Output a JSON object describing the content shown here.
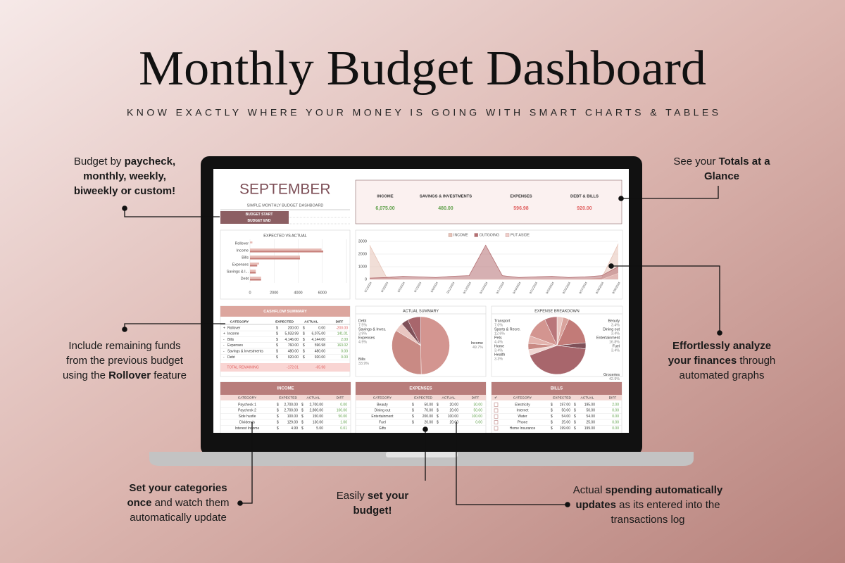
{
  "header": {
    "title": "Monthly Budget Dashboard",
    "subtitle": "KNOW EXACTLY WHERE YOUR MONEY IS GOING WITH SMART CHARTS & TABLES"
  },
  "callouts": [
    {
      "lines": [
        [
          {
            "text": "Budget by "
          },
          {
            "text": "paycheck,",
            "bold": true
          }
        ],
        [
          {
            "text": "monthly, weekly,",
            "bold": true
          }
        ],
        [
          {
            "text": "biweekly or custom!",
            "bold": true
          }
        ]
      ]
    },
    {
      "lines": [
        [
          {
            "text": "See your "
          },
          {
            "text": "Totals at a",
            "bold": true
          }
        ],
        [
          {
            "text": "Glance",
            "bold": true
          }
        ]
      ]
    },
    {
      "lines": [
        [
          {
            "text": "Include remaining funds"
          }
        ],
        [
          {
            "text": "from the previous budget"
          }
        ],
        [
          {
            "text": "using the "
          },
          {
            "text": "Rollover",
            "bold": true
          },
          {
            "text": " feature"
          }
        ]
      ]
    },
    {
      "lines": [
        [
          {
            "text": "Effortlessly analyze",
            "bold": true
          }
        ],
        [
          {
            "text": "your finances",
            "bold": true
          },
          {
            "text": " through"
          }
        ],
        [
          {
            "text": "automated graphs"
          }
        ]
      ]
    },
    {
      "lines": [
        [
          {
            "text": "Set your categories",
            "bold": true
          }
        ],
        [
          {
            "text": "once",
            "bold": true
          },
          {
            "text": " and watch them"
          }
        ],
        [
          {
            "text": "automatically update"
          }
        ]
      ]
    },
    {
      "lines": [
        [
          {
            "text": "Easily "
          },
          {
            "text": "set your",
            "bold": true
          }
        ],
        [
          {
            "text": "budget!",
            "bold": true
          }
        ]
      ]
    },
    {
      "lines": [
        [
          {
            "text": "Actual "
          },
          {
            "text": "spending automatically",
            "bold": true
          }
        ],
        [
          {
            "text": "updates",
            "bold": true
          },
          {
            "text": " as its entered into the"
          }
        ],
        [
          {
            "text": "transactions log"
          }
        ]
      ]
    }
  ],
  "dashboard": {
    "month": "SEPTEMBER",
    "subtitle": "SIMPLE MONTHLY BUDGET DASHBOARD",
    "budget_start": "BUDGET START",
    "budget_end": "BUDGET END",
    "currency": "$",
    "totals": [
      {
        "label": "INCOME",
        "value": "6,075.00",
        "color": "#5fa04a"
      },
      {
        "label": "SAVINGS & INVESTMENTS",
        "value": "480.00",
        "color": "#5fa04a"
      },
      {
        "label": "EXPENSES",
        "value": "596.98",
        "color": "#e06060"
      },
      {
        "label": "DEBT & BILLS",
        "value": "920.00",
        "color": "#e06060"
      }
    ],
    "cashflow": {
      "title": "CASHFLOW SUMMARY",
      "columns": [
        "CATEGORY",
        "EXPECTED",
        "ACTUAL",
        "DIFF"
      ],
      "rows": [
        [
          "+",
          "Rollover",
          "200.00",
          "0.00",
          "-200.00"
        ],
        [
          "+",
          "Income",
          "5,933.99",
          "6,075.00",
          "141.01"
        ],
        [
          "-",
          "Bills",
          "4,146.00",
          "4,144.00",
          "2.00"
        ],
        [
          "-",
          "Expenses",
          "760.00",
          "596.98",
          "163.02"
        ],
        [
          "-",
          "Savings & Investments",
          "480.00",
          "480.00",
          "0.00"
        ],
        [
          "-",
          "Debt",
          "920.00",
          "920.00",
          "0.00"
        ]
      ],
      "total": [
        "TOTAL REMAINING",
        "-172.01",
        "-65.98"
      ]
    },
    "tables": [
      {
        "title": "INCOME",
        "columns": [
          "CATEGORY",
          "EXPECTED",
          "ACTUAL",
          "DIFF"
        ],
        "rows": [
          [
            "Paycheck 1",
            "2,700.00",
            "2,700.00",
            "0.00"
          ],
          [
            "Paycheck 2",
            "2,700.00",
            "2,800.00",
            "100.00"
          ],
          [
            "Side hustle",
            "100.00",
            "150.00",
            "50.00"
          ],
          [
            "Dividends",
            "129.00",
            "130.00",
            "1.00"
          ],
          [
            "Interest Income",
            "4.99",
            "5.00",
            "0.01"
          ]
        ]
      },
      {
        "title": "EXPENSES",
        "columns": [
          "CATEGORY",
          "EXPECTED",
          "ACTUAL",
          "DIFF"
        ],
        "rows": [
          [
            "Beauty",
            "50.00",
            "20.00",
            "30.00"
          ],
          [
            "Dining out",
            "70.00",
            "20.00",
            "50.00"
          ],
          [
            "Entertainment",
            "200.00",
            "100.00",
            "100.00"
          ],
          [
            "Fuel",
            "20.00",
            "20.00",
            "0.00"
          ],
          [
            "Gifts"
          ]
        ]
      },
      {
        "title": "BILLS",
        "columns": [
          "✔",
          "CATEGORY",
          "EXPECTED",
          "ACTUAL",
          "DIFF"
        ],
        "rows": [
          [
            "Electricity",
            "197.00",
            "195.00",
            "2.00"
          ],
          [
            "Internet",
            "50.00",
            "50.00",
            "0.00"
          ],
          [
            "Water",
            "54.00",
            "54.00",
            "0.00"
          ],
          [
            "Phone",
            "25.00",
            "25.00",
            "0.00"
          ],
          [
            "Home Insurance",
            "199.00",
            "199.00",
            "0.00"
          ]
        ]
      }
    ],
    "charts": [
      {
        "type": "bar",
        "orientation": "horizontal",
        "title": "EXPECTED VS ACTUAL",
        "categories": [
          "Rollover",
          "Income",
          "Bills",
          "Expenses",
          "Savings & I...",
          "Debt"
        ],
        "series": [
          {
            "color": "#e8bcb6",
            "values": [
              200,
              5933.99,
              4146,
              760,
              480,
              920
            ]
          },
          {
            "color": "#c9847f",
            "values": [
              0,
              6075,
              4144,
              596.98,
              480,
              920
            ]
          }
        ],
        "xlim": [
          0,
          8000
        ],
        "xticks": [
          0,
          2000,
          4000,
          6000
        ],
        "grid": true
      },
      {
        "type": "area",
        "x": [
          "9/1/2024",
          "9/3/2024",
          "9/5/2024",
          "9/7/2024",
          "9/9/2024",
          "9/11/2024",
          "9/13/2024",
          "9/15/2024",
          "9/17/2024",
          "9/19/2024",
          "9/21/2024",
          "9/23/2024",
          "9/25/2024",
          "9/27/2024",
          "9/29/2024",
          "9/30/2024"
        ],
        "series": [
          {
            "name": "INCOME",
            "color": "#e6c3b6",
            "values": [
              2700,
              200,
              0,
              0,
              0,
              0,
              0,
              0,
              0,
              0,
              0,
              0,
              0,
              0,
              100,
              2800
            ]
          },
          {
            "name": "OUTGOING",
            "color": "#b46f72",
            "values": [
              100,
              150,
              250,
              200,
              150,
              250,
              300,
              2700,
              300,
              150,
              200,
              250,
              150,
              200,
              300,
              1000
            ]
          },
          {
            "name": "PUT ASIDE",
            "color": "#f0cfca",
            "values": [
              0,
              0,
              0,
              0,
              0,
              0,
              0,
              0,
              0,
              0,
              0,
              0,
              0,
              0,
              0,
              480
            ]
          }
        ],
        "ylim": [
          0,
          3000
        ],
        "yticks": [
          0,
          1000,
          2000,
          3000
        ],
        "grid": true,
        "legend": "top"
      },
      {
        "type": "pie",
        "title": "ACTUAL SUMMARY",
        "categories": [
          "Income",
          "Bills",
          "Expenses",
          "Savings & Inves.",
          "Debt"
        ],
        "values": [
          49.7,
          33.9,
          4.9,
          3.9,
          7.5
        ],
        "value_labels": [
          "49.7%",
          "33.9%",
          "4.9%",
          "3.9%",
          "7.5%"
        ],
        "colors": [
          "#d39590",
          "#c98a84",
          "#e9c6c1",
          "#7f5058",
          "#a8666c"
        ]
      },
      {
        "type": "pie",
        "title": "EXPENSE BREAKDOWN",
        "categories": [
          "Beauty",
          "Dining out",
          "Entertainment",
          "Fuel",
          "Groceries",
          "Health",
          "Home",
          "Pets",
          "Sports & Recre.",
          "Transport"
        ],
        "values": [
          3.4,
          3.4,
          16.8,
          3.4,
          42.9,
          3.3,
          3.4,
          4.4,
          12.6,
          7.0
        ],
        "value_labels": [
          "3.4%",
          "3.4%",
          "16.8%",
          "3.4%",
          "42.9%",
          "3.3%",
          "3.4%",
          "4.4%",
          "12.6%",
          "7.0%"
        ],
        "colors": [
          "#e9c6c1",
          "#d9a39c",
          "#c27b78",
          "#7f5058",
          "#a8666c",
          "#f1d8d4",
          "#c98a84",
          "#e3b3ad",
          "#d39590",
          "#b9767a"
        ]
      }
    ]
  }
}
